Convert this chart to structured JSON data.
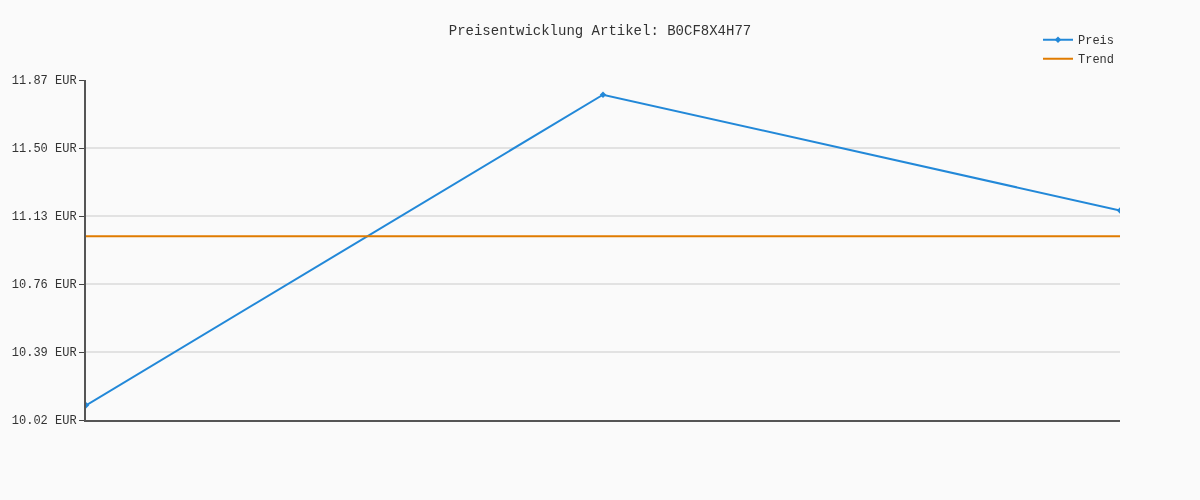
{
  "chart_data": {
    "type": "line",
    "title": "Preisentwicklung Artikel: B0CF8X4H77",
    "categories": [
      null,
      null,
      null
    ],
    "series": [
      {
        "name": "Preis",
        "color": "#2288d8",
        "values": [
          10.1,
          11.79,
          11.16
        ],
        "marker": "diamond"
      },
      {
        "name": "Trend",
        "color": "#e07b00",
        "values": [
          11.02,
          11.02,
          11.02
        ],
        "marker": "none"
      }
    ],
    "ylim": [
      10.02,
      11.87
    ],
    "yticks": [
      {
        "value": 10.02,
        "label": "10.02 EUR"
      },
      {
        "value": 10.39,
        "label": "10.39 EUR"
      },
      {
        "value": 10.76,
        "label": "10.76 EUR"
      },
      {
        "value": 11.13,
        "label": "11.13 EUR"
      },
      {
        "value": 11.5,
        "label": "11.50 EUR"
      },
      {
        "value": 11.87,
        "label": "11.87 EUR"
      }
    ],
    "grid": "y",
    "legend": "top right",
    "tick_labels": "y"
  }
}
